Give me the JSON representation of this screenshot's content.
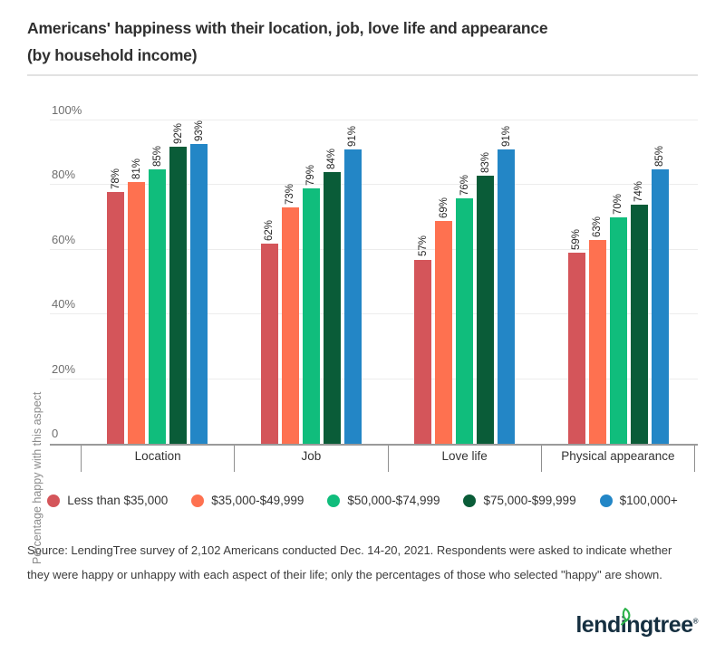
{
  "title": {
    "line1": "Americans' happiness with their location, job, love life and appearance",
    "line2": "(by household income)"
  },
  "chart_data": {
    "type": "bar",
    "title": "Americans' happiness with their location, job, love life and appearance (by household income)",
    "categories": [
      "Location",
      "Job",
      "Love life",
      "Physical appearance"
    ],
    "series": [
      {
        "name": "Less than $35,000",
        "color": "#d4555a",
        "values": [
          78,
          62,
          57,
          59
        ]
      },
      {
        "name": "$35,000-$49,999",
        "color": "#fe7150",
        "values": [
          81,
          73,
          69,
          63
        ]
      },
      {
        "name": "$50,000-$74,999",
        "color": "#10bd7c",
        "values": [
          85,
          79,
          76,
          70
        ]
      },
      {
        "name": "$75,000-$99,999",
        "color": "#0a5c38",
        "values": [
          92,
          84,
          83,
          74
        ]
      },
      {
        "name": "$100,000+",
        "color": "#2386c6",
        "values": [
          93,
          91,
          91,
          85
        ]
      }
    ],
    "xlabel": "",
    "ylabel": "Percentage happy with this aspect",
    "ylim": [
      0,
      100
    ],
    "yticks": [
      "0",
      "20%",
      "40%",
      "60%",
      "80%",
      "100%"
    ],
    "ytick_values": [
      0,
      20,
      40,
      60,
      80,
      100
    ],
    "value_label_suffix": "%",
    "grid": true,
    "legend_position": "bottom"
  },
  "source": {
    "text": "Source: LendingTree survey of 2,102 Americans conducted Dec. 14-20, 2021. Respondents were asked to indicate whether they were happy or unhappy with each aspect of their life; only the percentages of those who selected \"happy\" are shown."
  },
  "logo": {
    "part1": "lend",
    "part2": "i",
    "part3": "ngtree",
    "reg": "®",
    "leaf_color": "#2eb34b",
    "text_color": "#152f40"
  }
}
